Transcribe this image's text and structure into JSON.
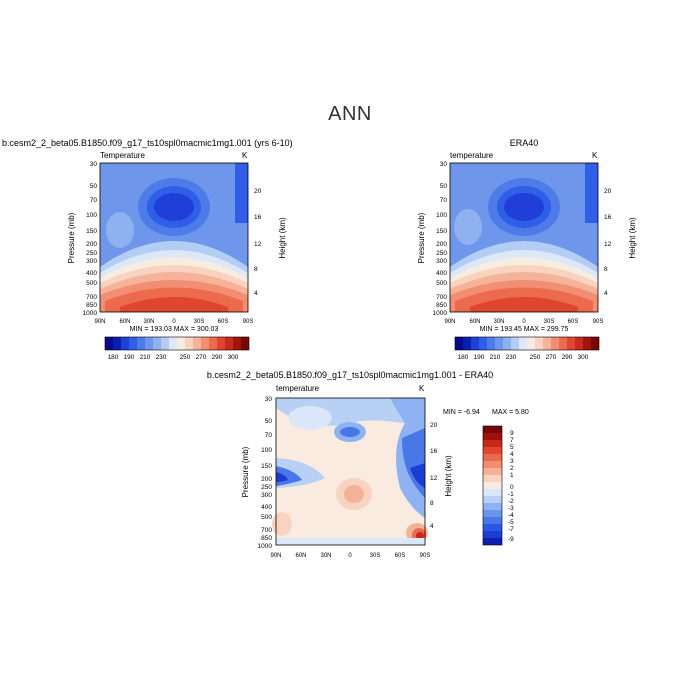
{
  "page_title": "ANN",
  "colors": {
    "seq": [
      "#08088a",
      "#0a1fb0",
      "#1f3fd8",
      "#2f5ee8",
      "#4d7be8",
      "#6e97ec",
      "#8fb1f0",
      "#b4cdf4",
      "#dce8f8",
      "#f7ece0",
      "#f8d4c0",
      "#f5b49a",
      "#f28f72",
      "#ec6a4e",
      "#e0462f",
      "#c82a1c",
      "#a0160f",
      "#7a0707"
    ],
    "diff": [
      "#07086a",
      "#0a1fb0",
      "#1c3cd4",
      "#2a58e6",
      "#4878e8",
      "#6a95ec",
      "#8fb3f2",
      "#b9d0f5",
      "#dae7f8",
      "#f8ece0",
      "#f8d3bf",
      "#f5b297",
      "#f28e70",
      "#ec6a4c",
      "#e0472e",
      "#c92818",
      "#a00f0a",
      "#7a0505"
    ]
  },
  "chart_data": [
    {
      "type": "heatmap",
      "title": "b.cesm2_2_beta05.B1850.f09_g17_ts10spl0macmic1mg1.001 (yrs 6-10)",
      "subtitle": "Temperature",
      "units": "K",
      "ylabel": "Pressure (mb)",
      "y2label": "Height (km)",
      "x_ticks": [
        "90N",
        "60N",
        "30N",
        "0",
        "30S",
        "60S",
        "90S"
      ],
      "y_ticks": [
        "30",
        "50",
        "70",
        "100",
        "150",
        "200",
        "250",
        "300",
        "400",
        "500",
        "700",
        "850",
        "1000"
      ],
      "y2_ticks": [
        "20",
        "16",
        "12",
        "8",
        "4"
      ],
      "stats": "MIN = 193.03   MAX = 300.03",
      "min": 193.03,
      "max": 300.03,
      "colorbar_labels": [
        "180",
        "190",
        "210",
        "230",
        "250",
        "270",
        "290",
        "300"
      ]
    },
    {
      "type": "heatmap",
      "title": "ERA40",
      "subtitle": "temperature",
      "units": "K",
      "ylabel": "Pressure (mb)",
      "y2label": "Height (km)",
      "x_ticks": [
        "90N",
        "60N",
        "30N",
        "0",
        "30S",
        "60S",
        "90S"
      ],
      "y_ticks": [
        "30",
        "50",
        "70",
        "100",
        "150",
        "200",
        "250",
        "300",
        "400",
        "500",
        "700",
        "850",
        "1000"
      ],
      "y2_ticks": [
        "20",
        "16",
        "12",
        "8",
        "4"
      ],
      "stats": "MIN = 193.45   MAX = 299.75",
      "min": 193.45,
      "max": 299.75,
      "colorbar_labels": [
        "180",
        "190",
        "210",
        "230",
        "250",
        "270",
        "290",
        "300"
      ]
    },
    {
      "type": "heatmap",
      "title": "b.cesm2_2_beta05.B1850.f09_g17_ts10spl0macmic1mg1.001 - ERA40",
      "subtitle": "temperature",
      "units": "K",
      "ylabel": "Pressure (mb)",
      "y2label": "Height (km)",
      "x_ticks": [
        "90N",
        "60N",
        "30N",
        "0",
        "30S",
        "60S",
        "90S"
      ],
      "y_ticks": [
        "30",
        "50",
        "70",
        "100",
        "150",
        "200",
        "250",
        "300",
        "400",
        "500",
        "700",
        "850",
        "1000"
      ],
      "y2_ticks": [
        "20",
        "16",
        "12",
        "8",
        "4"
      ],
      "stats_min": "MIN =   -6.94",
      "stats_max": "MAX =    5.80",
      "min": -6.94,
      "max": 5.8,
      "colorbar_labels": [
        "9",
        "7",
        "5",
        "4",
        "3",
        "2",
        "1",
        "0",
        "-1",
        "-2",
        "-3",
        "-4",
        "-5",
        "-7",
        "-9"
      ]
    }
  ]
}
